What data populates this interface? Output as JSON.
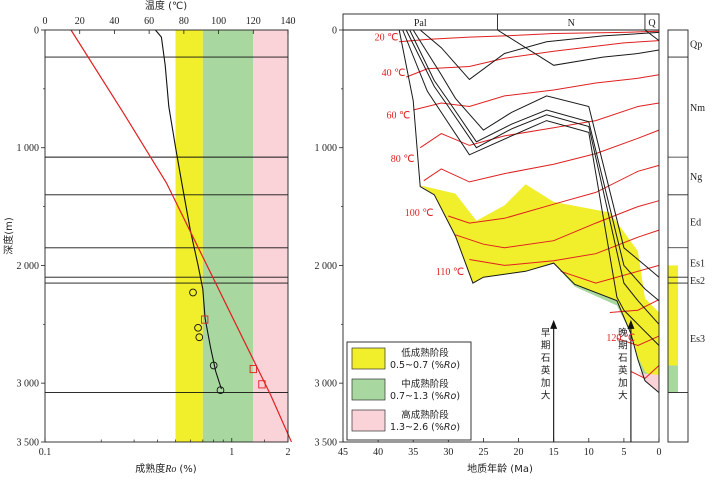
{
  "chart_data": [
    {
      "type": "line",
      "top_axis": {
        "label": "温度 (℃)",
        "range": [
          0,
          140
        ],
        "ticks": [
          0,
          20,
          40,
          60,
          80,
          100,
          120,
          140
        ]
      },
      "bottom_axis": {
        "label": "成熟度Ro (%)",
        "label_main": "成熟度",
        "label_sym": "Ro",
        "label_unit": "(%)",
        "scale": "log",
        "range": [
          0.1,
          2
        ],
        "ticks": [
          {
            "v": 0.1,
            "t": "0.1"
          },
          {
            "v": 1,
            "t": "1"
          },
          {
            "v": 2,
            "t": "2"
          }
        ]
      },
      "y_axis": {
        "label": "深度(m)",
        "range": [
          0,
          3500
        ],
        "ticks": [
          {
            "v": 0,
            "t": "0"
          },
          {
            "v": 1000,
            "t": "1 000"
          },
          {
            "v": 2000,
            "t": "2 000"
          },
          {
            "v": 3000,
            "t": "3 000"
          },
          {
            "v": 3500,
            "t": "3 500"
          }
        ]
      },
      "stage_bands_Ro": [
        {
          "range": [
            0.5,
            0.7
          ],
          "color": "#f1ee2b"
        },
        {
          "range": [
            0.7,
            1.3
          ],
          "color": "#a8d8a0"
        },
        {
          "range": [
            1.3,
            2.0
          ],
          "color": "#f9d3d8"
        }
      ],
      "horizons_depth_m": [
        230,
        1080,
        1400,
        1850,
        2100,
        2150,
        3080
      ],
      "temperature_curve": {
        "color": "#e02020",
        "points": [
          [
            15,
            0
          ],
          [
            45,
            700
          ],
          [
            70,
            1300
          ],
          [
            90,
            1900
          ],
          [
            110,
            2500
          ],
          [
            130,
            3100
          ],
          [
            142,
            3500
          ]
        ]
      },
      "ro_curve": {
        "color": "#111111",
        "points": [
          [
            0.39,
            0
          ],
          [
            0.42,
            60
          ],
          [
            0.44,
            300
          ],
          [
            0.46,
            650
          ],
          [
            0.5,
            1000
          ],
          [
            0.54,
            1300
          ],
          [
            0.6,
            1700
          ],
          [
            0.66,
            2000
          ],
          [
            0.7,
            2200
          ],
          [
            0.72,
            2450
          ],
          [
            0.77,
            2700
          ],
          [
            0.82,
            2900
          ],
          [
            0.88,
            3050
          ]
        ]
      },
      "ro_samples": [
        [
          0.62,
          2230
        ],
        [
          0.66,
          2530
        ],
        [
          0.67,
          2610
        ],
        [
          0.8,
          2850
        ],
        [
          0.87,
          3060
        ]
      ],
      "temperature_samples": [
        [
          92,
          2460
        ],
        [
          120,
          2880
        ],
        [
          125,
          3010
        ]
      ]
    },
    {
      "type": "area",
      "x_axis": {
        "label": "地质年龄 (Ma)",
        "range": [
          45,
          0
        ],
        "ticks": [
          45,
          40,
          35,
          30,
          25,
          20,
          15,
          10,
          5,
          0
        ]
      },
      "y_axis": {
        "range": [
          0,
          3500
        ],
        "ticks": [
          {
            "v": 0,
            "t": "0"
          },
          {
            "v": 1000,
            "t": "1 000"
          },
          {
            "v": 2000,
            "t": "2 000"
          },
          {
            "v": 3000,
            "t": "3 000"
          },
          {
            "v": 3500,
            "t": "3 500"
          }
        ]
      },
      "periods": [
        {
          "label": "Pal",
          "range": [
            45,
            23
          ]
        },
        {
          "label": "N",
          "range": [
            23,
            2
          ]
        },
        {
          "label": "Q",
          "range": [
            2,
            0
          ]
        }
      ],
      "formations": [
        {
          "label": "Qp",
          "range": [
            0,
            230
          ]
        },
        {
          "label": "Nm",
          "range": [
            230,
            1080
          ]
        },
        {
          "label": "Ng",
          "range": [
            1080,
            1400
          ]
        },
        {
          "label": "Ed",
          "range": [
            1400,
            1850
          ]
        },
        {
          "label": "Es1",
          "range": [
            1850,
            2100
          ]
        },
        {
          "label": "Es2",
          "range": [
            2100,
            2150
          ]
        },
        {
          "label": "Es3",
          "range": [
            2150,
            3080
          ]
        }
      ],
      "strip_fill": [
        {
          "range": [
            2000,
            2850
          ],
          "color": "#f1ee2b"
        },
        {
          "range": [
            2850,
            3080
          ],
          "color": "#a8d8a0"
        }
      ],
      "isotherm_labels": [
        {
          "text": "20 ℃",
          "x": 40.5,
          "y": 90,
          "color": "#e02020"
        },
        {
          "text": "40 ℃",
          "x": 39.5,
          "y": 390,
          "color": "#e02020"
        },
        {
          "text": "60 ℃",
          "x": 38.8,
          "y": 750,
          "color": "#e02020"
        },
        {
          "text": "80 ℃",
          "x": 38.2,
          "y": 1120,
          "color": "#e02020"
        },
        {
          "text": "100 ℃",
          "x": 36.2,
          "y": 1580,
          "color": "#e02020"
        },
        {
          "text": "110 ℃",
          "x": 31.8,
          "y": 2080,
          "color": "#222222"
        },
        {
          "text": "120 ℃",
          "x": 7.5,
          "y": 2640,
          "color": "#e02020"
        }
      ],
      "isotherms": [
        [
          [
            37,
            100
          ],
          [
            33,
            80
          ],
          [
            27,
            60
          ],
          [
            22,
            50
          ],
          [
            15,
            30
          ],
          [
            5,
            20
          ],
          [
            0,
            10
          ]
        ],
        [
          [
            36,
            400
          ],
          [
            33,
            330
          ],
          [
            27,
            310
          ],
          [
            22,
            240
          ],
          [
            15,
            180
          ],
          [
            5,
            110
          ],
          [
            0,
            90
          ]
        ],
        [
          [
            35,
            680
          ],
          [
            31,
            620
          ],
          [
            27,
            650
          ],
          [
            22,
            560
          ],
          [
            15,
            510
          ],
          [
            9,
            450
          ],
          [
            3,
            410
          ],
          [
            0,
            380
          ]
        ],
        [
          [
            34,
            1000
          ],
          [
            31,
            880
          ],
          [
            27,
            980
          ],
          [
            22,
            900
          ],
          [
            15,
            830
          ],
          [
            9,
            770
          ],
          [
            3,
            650
          ],
          [
            0,
            620
          ]
        ],
        [
          [
            33.5,
            1280
          ],
          [
            31,
            1180
          ],
          [
            27,
            1290
          ],
          [
            22,
            1220
          ],
          [
            15,
            1140
          ],
          [
            9,
            1050
          ],
          [
            3,
            920
          ],
          [
            0,
            850
          ]
        ],
        [
          [
            30,
            1580
          ],
          [
            27,
            1640
          ],
          [
            22,
            1600
          ],
          [
            15,
            1480
          ],
          [
            9,
            1380
          ],
          [
            3,
            1200
          ],
          [
            0,
            1150
          ]
        ],
        [
          [
            29,
            1740
          ],
          [
            25,
            1820
          ],
          [
            22,
            1850
          ],
          [
            15,
            1790
          ],
          [
            9,
            1640
          ],
          [
            3,
            1500
          ],
          [
            0,
            1450
          ]
        ],
        [
          [
            27,
            1950
          ],
          [
            22,
            2000
          ],
          [
            15,
            1960
          ],
          [
            9,
            1900
          ],
          [
            3,
            1760
          ],
          [
            0,
            1700
          ]
        ],
        [
          [
            14,
            2050
          ],
          [
            9,
            2150
          ],
          [
            3,
            2050
          ],
          [
            0,
            2000
          ]
        ],
        [
          [
            7,
            2400
          ],
          [
            3,
            2380
          ],
          [
            0,
            2290
          ]
        ],
        [
          [
            6,
            2620
          ],
          [
            3,
            2680
          ],
          [
            0,
            2600
          ]
        ],
        [
          [
            4,
            2900
          ],
          [
            2,
            2960
          ],
          [
            0,
            2850
          ]
        ]
      ],
      "burial_curves": [
        [
          [
            37,
            0
          ],
          [
            35,
            600
          ],
          [
            34,
            1330
          ],
          [
            32,
            1400
          ],
          [
            29,
            1750
          ],
          [
            26.5,
            2150
          ],
          [
            25,
            2100
          ],
          [
            19,
            2050
          ],
          [
            15,
            1980
          ],
          [
            12,
            2160
          ],
          [
            6,
            2300
          ],
          [
            4,
            2580
          ],
          [
            3,
            2800
          ],
          [
            2,
            2980
          ],
          [
            0,
            3080
          ]
        ],
        [
          [
            36.5,
            0
          ],
          [
            33,
            520
          ],
          [
            31,
            700
          ],
          [
            27,
            1060
          ],
          [
            21,
            900
          ],
          [
            16,
            770
          ],
          [
            10,
            870
          ],
          [
            6,
            2270
          ],
          [
            5,
            2380
          ],
          [
            3,
            2500
          ],
          [
            0,
            2680
          ]
        ],
        [
          [
            36,
            0
          ],
          [
            32,
            480
          ],
          [
            30,
            650
          ],
          [
            26,
            1000
          ],
          [
            21,
            840
          ],
          [
            16,
            720
          ],
          [
            10,
            820
          ],
          [
            5,
            2150
          ],
          [
            3,
            2300
          ],
          [
            0,
            2500
          ]
        ],
        [
          [
            35.5,
            0
          ],
          [
            32,
            430
          ],
          [
            30,
            600
          ],
          [
            26,
            950
          ],
          [
            21,
            800
          ],
          [
            16,
            680
          ],
          [
            10,
            780
          ],
          [
            5,
            2000
          ],
          [
            2,
            2200
          ],
          [
            0,
            2300
          ]
        ],
        [
          [
            35,
            0
          ],
          [
            31,
            380
          ],
          [
            29,
            580
          ],
          [
            25,
            850
          ],
          [
            21,
            700
          ],
          [
            16,
            560
          ],
          [
            10,
            650
          ],
          [
            5,
            1850
          ],
          [
            2,
            2000
          ],
          [
            0,
            2100
          ]
        ],
        [
          [
            34,
            0
          ],
          [
            31,
            150
          ],
          [
            27,
            420
          ],
          [
            22,
            200
          ],
          [
            16,
            100
          ],
          [
            8,
            50
          ],
          [
            0,
            20
          ]
        ],
        [
          [
            23,
            0
          ],
          [
            15,
            300
          ],
          [
            8,
            230
          ],
          [
            3,
            200
          ],
          [
            0,
            170
          ]
        ],
        [
          [
            2,
            0
          ],
          [
            0,
            90
          ]
        ]
      ],
      "maturity_yellow": [
        [
          34,
          1320
        ],
        [
          29,
          1390
        ],
        [
          26,
          1620
        ],
        [
          22,
          1490
        ],
        [
          19,
          1310
        ],
        [
          15,
          1460
        ],
        [
          7,
          1550
        ],
        [
          3,
          1880
        ],
        [
          2,
          2280
        ],
        [
          0,
          2400
        ],
        [
          0,
          3080
        ],
        [
          2,
          2980
        ],
        [
          3,
          2800
        ],
        [
          4,
          2580
        ],
        [
          6,
          2300
        ],
        [
          12,
          2160
        ],
        [
          15,
          1980
        ],
        [
          19,
          2050
        ],
        [
          25,
          2100
        ],
        [
          26.5,
          2150
        ],
        [
          29,
          1750
        ],
        [
          32,
          1400
        ]
      ],
      "maturity_green": [
        [
          15,
          1980
        ],
        [
          12,
          2180
        ],
        [
          6,
          2340
        ],
        [
          4,
          2580
        ],
        [
          3,
          2780
        ],
        [
          2,
          2900
        ],
        [
          1,
          2950
        ],
        [
          0,
          2960
        ],
        [
          0,
          3080
        ],
        [
          2,
          2980
        ],
        [
          3,
          2800
        ],
        [
          4,
          2580
        ],
        [
          6,
          2300
        ],
        [
          12,
          2160
        ]
      ],
      "maturity_pink": [
        [
          4,
          2880
        ],
        [
          2,
          2920
        ],
        [
          0,
          2930
        ],
        [
          0,
          3080
        ],
        [
          2,
          2980
        ],
        [
          3,
          2900
        ]
      ],
      "events": [
        {
          "label": "早期石英加大",
          "age": 15
        },
        {
          "label": "晚期石英加大",
          "age": 4
        }
      ],
      "legend": [
        {
          "label": "低成熟阶段",
          "range": "0.5~0.7 (%Ro)",
          "range_main": "0.5~0.7 (%",
          "range_sym": "Ro",
          "range_end": ")",
          "color": "#f1ee2b"
        },
        {
          "label": "中成熟阶段",
          "range": "0.7~1.3 (%Ro)",
          "range_main": "0.7~1.3 (%",
          "range_sym": "Ro",
          "range_end": ")",
          "color": "#a8d8a0"
        },
        {
          "label": "高成熟阶段",
          "range": "1.3~2.6 (%Ro)",
          "range_main": "1.3~2.6 (%",
          "range_sym": "Ro",
          "range_end": ")",
          "color": "#f9d3d8"
        }
      ]
    }
  ]
}
